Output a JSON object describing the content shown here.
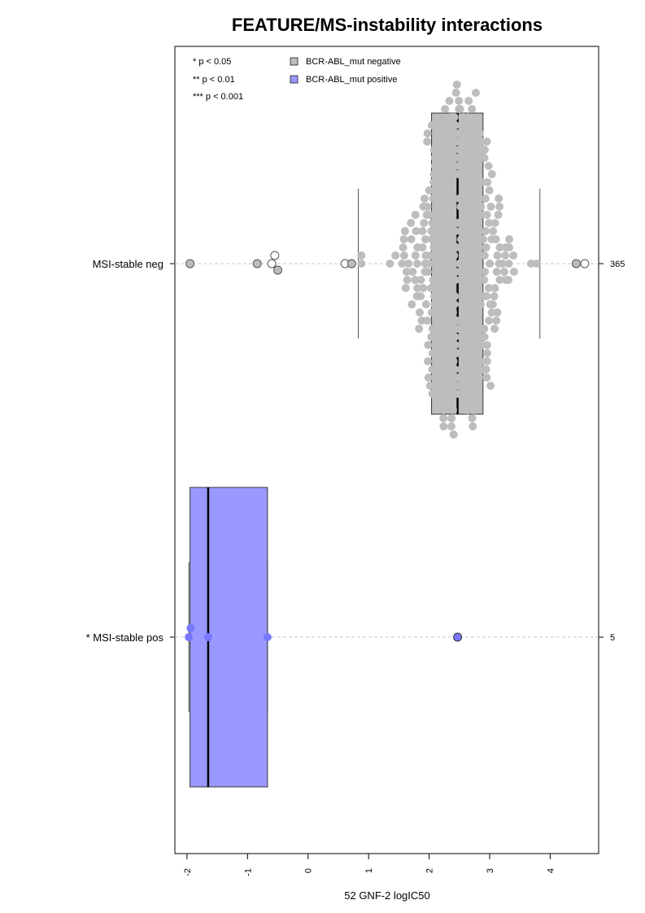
{
  "chart_data": {
    "type": "boxplot-beeswarm",
    "orientation": "horizontal",
    "title": "FEATURE/MS-instability interactions",
    "xlabel": "52 GNF-2 logIC50",
    "ylabel": "",
    "xlim": [
      -2.2,
      4.8
    ],
    "x_ticks": [
      -2,
      -1,
      0,
      1,
      2,
      3,
      4
    ],
    "x_tick_labels": [
      "-2",
      "-1",
      "0",
      "1",
      "2",
      "3",
      "4"
    ],
    "significance_legend": [
      "* p < 0.05",
      "** p < 0.01",
      "*** p < 0.001"
    ],
    "legend": [
      {
        "label": "BCR-ABL_mut negative",
        "color": "#bdbdbd"
      },
      {
        "label": "BCR-ABL_mut positive",
        "color": "#9999ff"
      }
    ],
    "groups": [
      {
        "label": "MSI-stable neg",
        "count_label": "365",
        "box_color": "#bdbdbd",
        "point_color": "#bdbdbd",
        "whisker_low": 0.83,
        "q1": 2.04,
        "median": 2.47,
        "q3": 2.89,
        "whisker_high": 3.83,
        "n": 365,
        "outliers": [
          -1.95,
          -0.84,
          -0.6,
          -0.55,
          -0.5,
          0.61,
          0.72,
          4.43,
          4.57
        ]
      },
      {
        "label": "* MSI-stable pos",
        "count_label": "5",
        "box_color": "#9999ff",
        "point_color": "#7777ff",
        "whisker_low": -1.97,
        "q1": -1.95,
        "median": -1.65,
        "q3": -0.67,
        "whisker_high": -0.67,
        "n": 5,
        "points": [
          -1.97,
          -1.94,
          -1.65,
          -0.67,
          2.47
        ]
      }
    ],
    "grid": false
  }
}
